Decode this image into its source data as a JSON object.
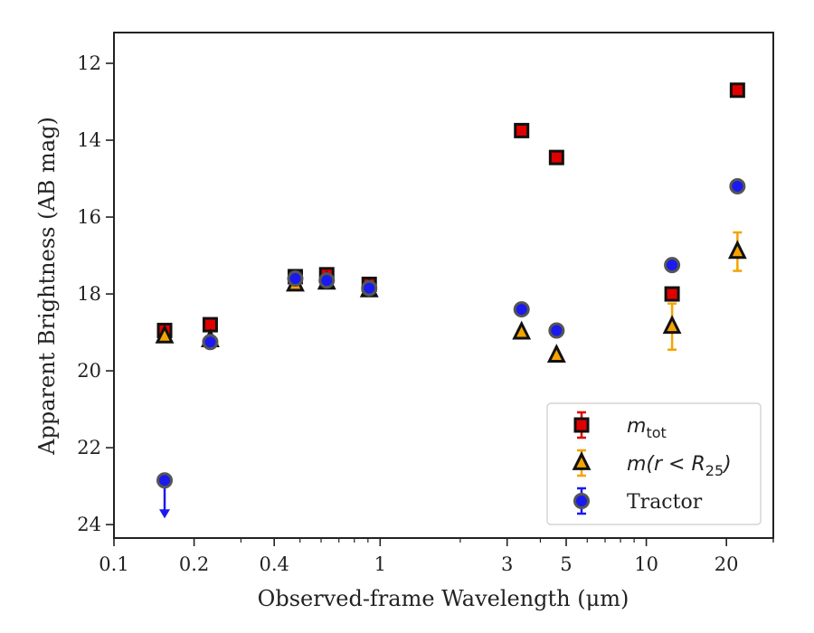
{
  "chart_data": {
    "type": "scatter",
    "xlabel": "Observed-frame Wavelength (μm)",
    "ylabel": "Apparent Brightness (AB mag)",
    "x_scale": "log",
    "xlim": [
      0.1,
      30
    ],
    "ylim": [
      24.35,
      11.2
    ],
    "y_inverted": true,
    "x_ticks": [
      0.1,
      0.2,
      0.4,
      1,
      3,
      5,
      10,
      20
    ],
    "x_tick_labels": [
      "0.1",
      "0.2",
      "0.4",
      "1",
      "3",
      "5",
      "10",
      "20"
    ],
    "y_ticks": [
      12,
      14,
      16,
      18,
      20,
      22,
      24
    ],
    "y_tick_labels": [
      "12",
      "14",
      "16",
      "18",
      "20",
      "22",
      "24"
    ],
    "legend_position": "lower-right",
    "series": [
      {
        "name": "m_tot",
        "legend_label": "m",
        "legend_sub": "tot",
        "marker": "square",
        "color": "#e00000",
        "edge_color": "#111111",
        "points": [
          {
            "x": 0.155,
            "y": 18.95,
            "err": 0.1
          },
          {
            "x": 0.23,
            "y": 18.8,
            "err": 0.08
          },
          {
            "x": 0.48,
            "y": 17.55,
            "err": 0.05
          },
          {
            "x": 0.63,
            "y": 17.5,
            "err": 0.05
          },
          {
            "x": 0.91,
            "y": 17.75,
            "err": 0.05
          },
          {
            "x": 3.4,
            "y": 13.75,
            "err": 0.05
          },
          {
            "x": 4.6,
            "y": 14.45,
            "err": 0.05
          },
          {
            "x": 12.5,
            "y": 18.0,
            "err": 0.1
          },
          {
            "x": 22.0,
            "y": 12.7,
            "err": 0.05
          }
        ]
      },
      {
        "name": "m(r < R_25)",
        "legend_label": "m(r < R",
        "legend_sub": "25",
        "legend_suffix": ")",
        "marker": "triangle",
        "color": "#f5a300",
        "edge_color": "#111111",
        "points": [
          {
            "x": 0.155,
            "y": 19.1,
            "err": 0.08
          },
          {
            "x": 0.23,
            "y": 19.2,
            "err": 0.08
          },
          {
            "x": 0.48,
            "y": 17.75,
            "err": 0.05
          },
          {
            "x": 0.63,
            "y": 17.7,
            "err": 0.05
          },
          {
            "x": 0.91,
            "y": 17.9,
            "err": 0.05
          },
          {
            "x": 3.4,
            "y": 19.0,
            "err": 0.05
          },
          {
            "x": 4.6,
            "y": 19.6,
            "err": 0.05
          },
          {
            "x": 12.5,
            "y": 18.85,
            "err": 0.6
          },
          {
            "x": 22.0,
            "y": 16.9,
            "err": 0.5
          }
        ]
      },
      {
        "name": "Tractor",
        "legend_label": "Tractor",
        "marker": "circle",
        "color": "#1a1aee",
        "edge_color": "#555555",
        "points": [
          {
            "x": 0.155,
            "y": 22.85,
            "upper_limit": true
          },
          {
            "x": 0.23,
            "y": 19.25,
            "err": 0.05
          },
          {
            "x": 0.48,
            "y": 17.6,
            "err": 0.05
          },
          {
            "x": 0.63,
            "y": 17.65,
            "err": 0.05
          },
          {
            "x": 0.91,
            "y": 17.85,
            "err": 0.05
          },
          {
            "x": 3.4,
            "y": 18.4,
            "err": 0.05
          },
          {
            "x": 4.6,
            "y": 18.95,
            "err": 0.05
          },
          {
            "x": 12.5,
            "y": 17.25,
            "err": 0.05
          },
          {
            "x": 22.0,
            "y": 15.2,
            "err": 0.05
          }
        ]
      }
    ]
  }
}
